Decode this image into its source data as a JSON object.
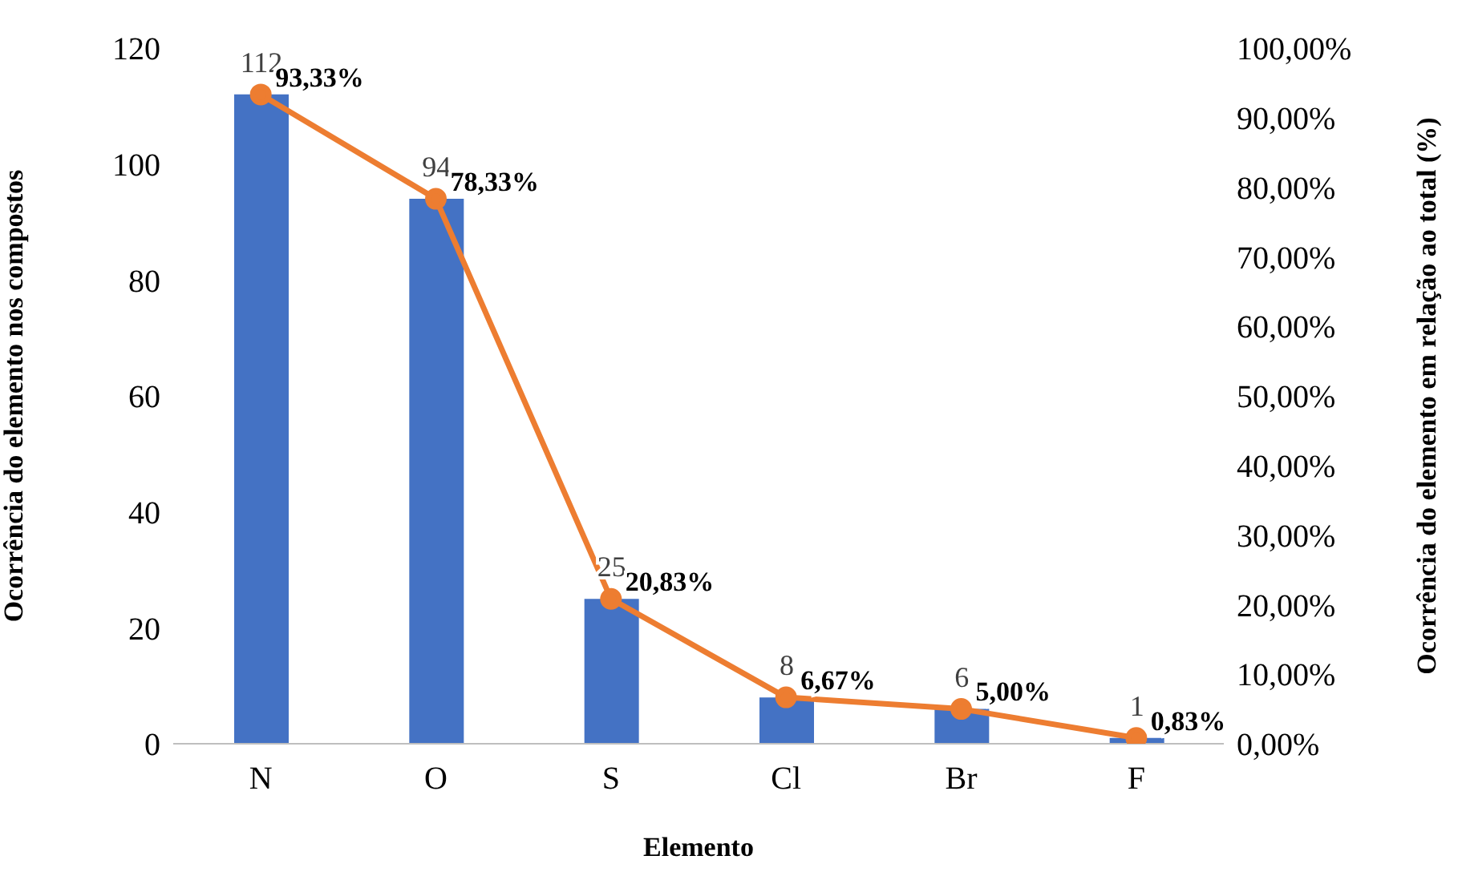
{
  "chart_data": {
    "type": "bar",
    "xlabel": "Elemento",
    "ylabel": "Ocorrência do elemento nos compostos",
    "y2label": "Ocorrência do elemento em relação ao total (%)",
    "categories": [
      "N",
      "O",
      "S",
      "Cl",
      "Br",
      "F"
    ],
    "series": [
      {
        "type": "bar",
        "color": "#4472c4",
        "values": [
          112,
          94,
          25,
          8,
          6,
          1
        ],
        "value_labels": [
          "112",
          "94",
          "25",
          "8",
          "6",
          "1"
        ]
      },
      {
        "type": "line",
        "axis": "y2",
        "color": "#ed7d31",
        "marker": "circle",
        "values": [
          93.33,
          78.33,
          20.83,
          6.67,
          5.0,
          0.83
        ],
        "value_labels": [
          "93,33%",
          "78,33%",
          "20,83%",
          "6,67%",
          "5,00%",
          "0,83%"
        ]
      }
    ],
    "ylim": [
      0,
      120
    ],
    "yticks": [
      0,
      20,
      40,
      60,
      80,
      100,
      120
    ],
    "y2lim": [
      0,
      100
    ],
    "y2ticks": [
      {
        "value": 0,
        "label": "0,00%"
      },
      {
        "value": 10,
        "label": "10,00%"
      },
      {
        "value": 20,
        "label": "20,00%"
      },
      {
        "value": 30,
        "label": "30,00%"
      },
      {
        "value": 40,
        "label": "40,00%"
      },
      {
        "value": 50,
        "label": "50,00%"
      },
      {
        "value": 60,
        "label": "60,00%"
      },
      {
        "value": 70,
        "label": "70,00%"
      },
      {
        "value": 80,
        "label": "80,00%"
      },
      {
        "value": 90,
        "label": "90,00%"
      },
      {
        "value": 100,
        "label": "100,00%"
      }
    ],
    "grid": false,
    "legend": false
  }
}
